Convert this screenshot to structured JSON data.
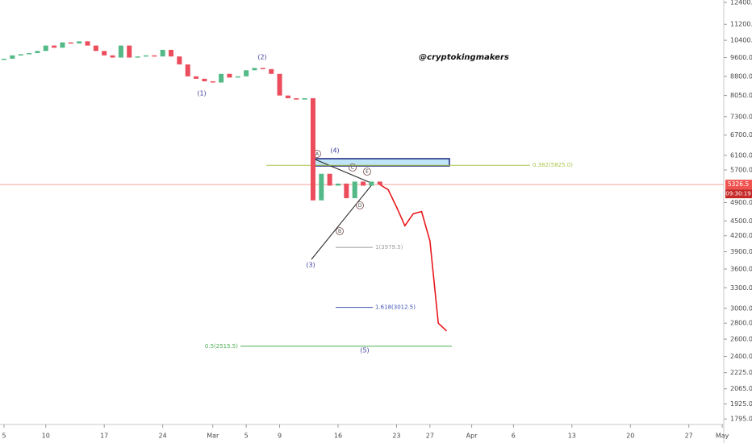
{
  "chart_data": {
    "type": "candle",
    "log": true,
    "ylim": [
      1750,
      12540
    ],
    "yticks": [
      {
        "value": 12400,
        "label": "12400.0"
      },
      {
        "value": 11200,
        "label": "11200.0"
      },
      {
        "value": 10400,
        "label": "10400.0"
      },
      {
        "value": 9600,
        "label": "9600.0"
      },
      {
        "value": 8800,
        "label": "8800.0"
      },
      {
        "value": 8050,
        "label": "8050.0"
      },
      {
        "value": 7300,
        "label": "7300.0"
      },
      {
        "value": 6700,
        "label": "6700.0"
      },
      {
        "value": 6100,
        "label": "6100.0"
      },
      {
        "value": 5700,
        "label": "5700.0"
      },
      {
        "value": 4900,
        "label": "4900.0"
      },
      {
        "value": 4500,
        "label": "4500.0"
      },
      {
        "value": 4200,
        "label": "4200.0"
      },
      {
        "value": 3900,
        "label": "3900.0"
      },
      {
        "value": 3600,
        "label": "3600.0"
      },
      {
        "value": 3300,
        "label": "3300.0"
      },
      {
        "value": 3000,
        "label": "3000.0"
      },
      {
        "value": 2800,
        "label": "2800.0"
      },
      {
        "value": 2600,
        "label": "2600.0"
      },
      {
        "value": 2400,
        "label": "2400.0"
      },
      {
        "value": 2225,
        "label": "2225.0"
      },
      {
        "value": 2065,
        "label": "2065.0"
      },
      {
        "value": 1925,
        "label": "1925.0"
      },
      {
        "value": 1795,
        "label": "1795.0"
      }
    ],
    "categories": [
      "5",
      null,
      null,
      null,
      null,
      "10",
      null,
      null,
      null,
      null,
      null,
      null,
      "17",
      null,
      null,
      null,
      null,
      null,
      null,
      "24",
      null,
      null,
      null,
      null,
      null,
      "Mar",
      null,
      null,
      null,
      "5",
      null,
      null,
      null,
      "9",
      null,
      null,
      null,
      null,
      null,
      null,
      "16",
      null,
      null,
      null,
      null,
      null,
      null,
      "23",
      null,
      null,
      null,
      "27",
      null,
      null,
      null,
      null,
      "Apr",
      null,
      null,
      null,
      null,
      "6",
      null,
      null,
      null,
      null,
      null,
      null,
      "13",
      null,
      null,
      null,
      null,
      null,
      null,
      "20",
      null,
      null,
      null,
      null,
      null,
      null,
      "27",
      null,
      null,
      null,
      "May"
    ],
    "series": [
      {
        "up_color": "#53b987",
        "down_color": "#eb4d5c",
        "values": [
          9550,
          9700,
          9750,
          9800,
          9900,
          10150,
          10050,
          10300,
          10250,
          10350,
          10150,
          9900,
          9700,
          9600,
          10150,
          9600,
          9650,
          9700,
          9650,
          9950,
          9650,
          9300,
          8800,
          8700,
          8600,
          8550,
          8900,
          8750,
          8800,
          9050,
          9150,
          9100,
          8900,
          8050,
          7950,
          7900,
          7950,
          4950,
          5600,
          5300,
          5350,
          5000,
          5400,
          5300,
          5400,
          5326.5,
          null,
          null,
          null,
          null,
          null,
          null,
          null,
          null,
          null,
          null,
          null,
          null,
          null,
          null,
          null,
          null,
          null,
          null,
          null,
          null,
          null,
          null,
          null,
          null,
          null,
          null,
          null,
          null,
          null,
          null,
          null,
          null,
          null,
          null,
          null,
          null,
          null,
          null,
          null,
          null,
          null
        ]
      },
      {
        "color": "#e8181c",
        "values": [
          null,
          null,
          null,
          null,
          null,
          null,
          null,
          null,
          null,
          null,
          null,
          null,
          null,
          null,
          null,
          null,
          null,
          null,
          null,
          null,
          null,
          null,
          null,
          null,
          null,
          null,
          null,
          null,
          null,
          null,
          null,
          null,
          null,
          null,
          null,
          null,
          null,
          null,
          null,
          null,
          null,
          null,
          null,
          null,
          null,
          5326.5,
          5200,
          4800,
          4400,
          4650,
          4700,
          4100,
          2800,
          2700,
          null,
          null,
          null,
          null,
          null,
          null,
          null,
          null,
          null,
          null,
          null,
          null,
          null,
          null,
          null,
          null,
          null,
          null,
          null,
          null,
          null,
          null,
          null,
          null,
          null,
          null,
          null,
          null,
          null,
          null,
          null,
          null,
          null
        ]
      }
    ],
    "current_price": {
      "value": 5326.5,
      "label": "5326.5",
      "timer": "09:30:19"
    },
    "levels": [
      {
        "label": "0.382(5825.0)",
        "value": 5825,
        "color": "#a8c64e"
      },
      {
        "label": "1(3979.5)",
        "value": 3979.5,
        "color": "#9e9e9e"
      },
      {
        "label": "1.618(3012.5)",
        "value": 3012.5,
        "color": "#3f51b5"
      },
      {
        "label": "0.5(2515.5)",
        "value": 2515.5,
        "color": "#4caf50"
      }
    ],
    "annotations": {
      "watermark": "@cryptokingmakers",
      "waves": [
        "(1)",
        "(2)",
        "(3)",
        "(4)",
        "(5)"
      ],
      "points": [
        "A",
        "B",
        "C",
        "D",
        "E"
      ]
    }
  }
}
